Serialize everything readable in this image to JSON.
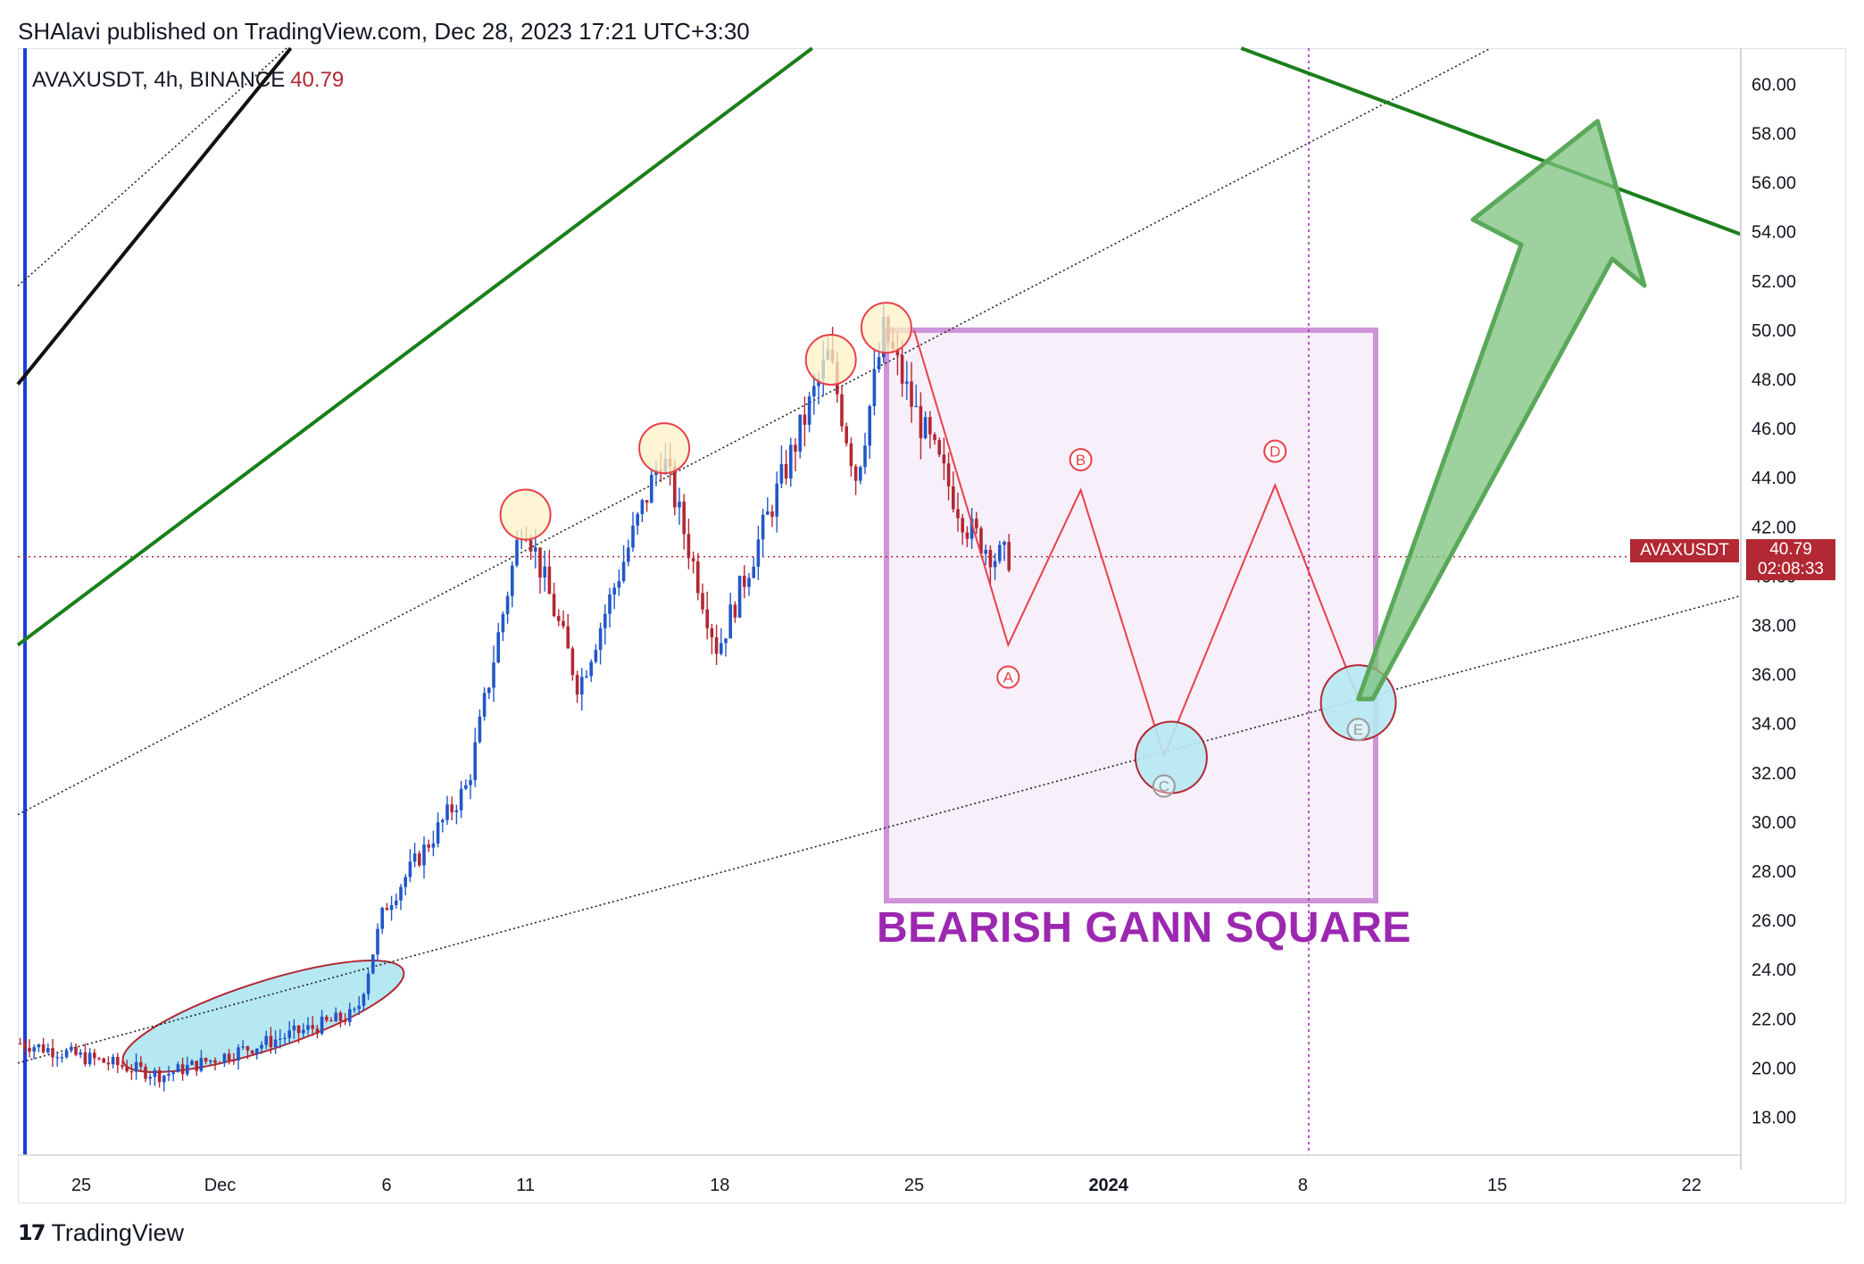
{
  "header": {
    "publisher_line": "SHAlavi published on TradingView.com, Dec 28, 2023 17:21 UTC+3:30"
  },
  "legend": {
    "symbol": "AVAXUSDT, 4h, BINANCE",
    "last_price": "40.79"
  },
  "price_scale": {
    "ticks": [
      "60.00",
      "58.00",
      "56.00",
      "54.00",
      "52.00",
      "50.00",
      "48.00",
      "46.00",
      "44.00",
      "42.00",
      "40.00",
      "38.00",
      "36.00",
      "34.00",
      "32.00",
      "30.00",
      "28.00",
      "26.00",
      "24.00",
      "22.00",
      "20.00",
      "18.00"
    ],
    "symbol_tag": "AVAXUSDT",
    "price_tag": "40.79",
    "countdown": "02:08:33"
  },
  "time_scale": {
    "ticks": [
      "25",
      "Dec",
      "6",
      "11",
      "18",
      "25",
      "2024",
      "8",
      "15",
      "22"
    ]
  },
  "annotation": {
    "title": "BEARISH GANN SQUARE",
    "wave_labels": [
      "A",
      "B",
      "C",
      "D",
      "E"
    ]
  },
  "footer": {
    "brand": "TradingView",
    "logo_icon": "tradingview-logo-icon"
  },
  "colors": {
    "up": "#2157c9",
    "down": "#b22833",
    "gann_fill": "#f7effa",
    "gann_border": "#ce93d8",
    "label_purple": "#9c27b0",
    "channel_green": "#1a7f1a",
    "zigzag_red": "#e8404a",
    "highlight_cyan": "#b6e8f2",
    "highlight_yellow": "#fcf2c4",
    "arrow_green": "#7cc27c"
  },
  "chart_data": {
    "type": "candlestick",
    "symbol": "AVAXUSDT",
    "interval": "4h",
    "exchange": "BINANCE",
    "last": 40.79,
    "ylim": [
      16.2,
      61.5
    ],
    "key_prices": [
      {
        "date": "2023-11-23",
        "price": 21.0
      },
      {
        "date": "2023-11-28",
        "price": 19.7
      },
      {
        "date": "2023-12-05",
        "price": 22.2
      },
      {
        "date": "2023-12-06",
        "price": 26.5
      },
      {
        "date": "2023-12-09",
        "price": 31.5
      },
      {
        "date": "2023-12-11",
        "price": 42.5
      },
      {
        "date": "2023-12-13",
        "price": 35.5
      },
      {
        "date": "2023-12-16",
        "price": 45.0
      },
      {
        "date": "2023-12-18",
        "price": 37.0
      },
      {
        "date": "2023-12-22",
        "price": 49.0
      },
      {
        "date": "2023-12-23",
        "price": 44.0
      },
      {
        "date": "2023-12-24",
        "price": 50.0
      },
      {
        "date": "2023-12-25",
        "price": 47.0
      },
      {
        "date": "2023-12-27",
        "price": 42.0
      },
      {
        "date": "2023-12-28",
        "price": 40.79
      }
    ],
    "projection": [
      {
        "label": "A",
        "date": "2023-12-28",
        "price": 37.2
      },
      {
        "label": "B",
        "date": "2023-12-31",
        "price": 43.5
      },
      {
        "label": "C",
        "date": "2024-01-03",
        "price": 32.7
      },
      {
        "label": "D",
        "date": "2024-01-07",
        "price": 43.7
      },
      {
        "label": "E",
        "date": "2024-01-10",
        "price": 35.0
      }
    ],
    "target": {
      "date": "2024-01-19",
      "price": 58.5
    }
  }
}
